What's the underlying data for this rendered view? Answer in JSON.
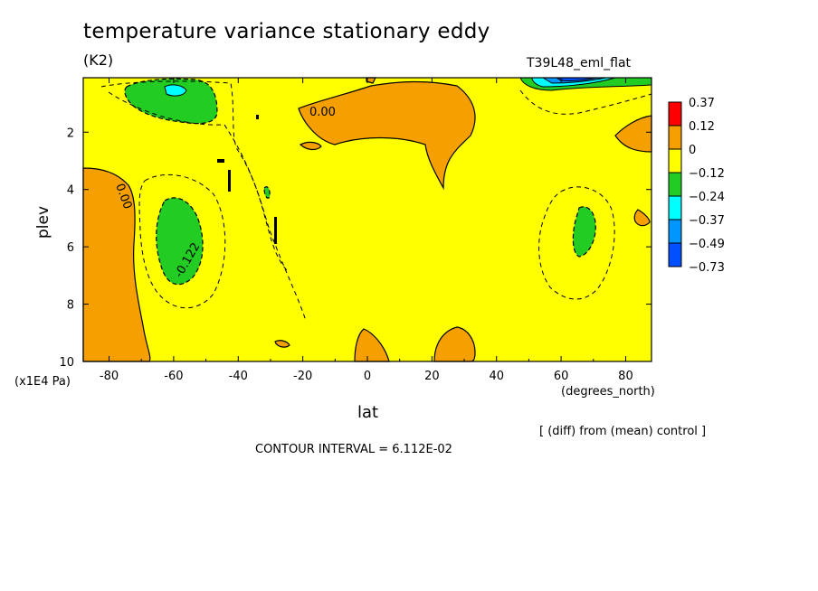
{
  "chart_data": {
    "type": "contour",
    "title": "temperature variance stationary eddy",
    "units": "(K2)",
    "run_label": "T39L48_eml_flat",
    "xlabel": "lat",
    "x_unit": "(degrees_north)",
    "ylabel": "plev",
    "y_unit": "(x1E4 Pa)",
    "xlim": [
      -88,
      88
    ],
    "ylim": [
      10,
      0.1
    ],
    "x_ticks": [
      -80,
      -60,
      -40,
      -20,
      0,
      20,
      40,
      60,
      80
    ],
    "y_ticks": [
      2,
      4,
      6,
      8,
      10
    ],
    "contour_labels": [
      "0.00",
      "0.00",
      "-0.122"
    ],
    "note": "[ (diff) from (mean) control ]",
    "contour_interval": "CONTOUR INTERVAL = 6.112E-02",
    "colorbar": {
      "labels": [
        "0.37",
        "0.12",
        "0",
        "-0.12",
        "-0.24",
        "-0.37",
        "-0.49",
        "-0.73"
      ],
      "colors": [
        "#ff0000",
        "#f5a000",
        "#ffff00",
        "#22cc22",
        "#00ffff",
        "#0096ff",
        "#0050ff"
      ]
    }
  },
  "colors": {
    "positive": "#f5a000",
    "neutral": "#ffff00",
    "neg1": "#22cc22",
    "neg2": "#00ffff",
    "neg3": "#0096ff",
    "neg4": "#0050ff",
    "max": "#ff0000"
  }
}
